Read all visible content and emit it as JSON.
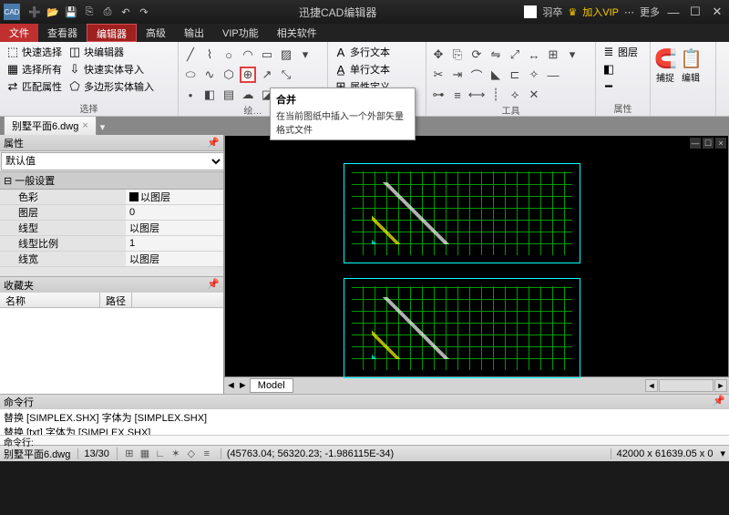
{
  "app": {
    "title": "迅捷CAD编辑器",
    "logo": "CAD"
  },
  "user": {
    "name": "羽卒",
    "vip_label": "加入VIP",
    "more_label": "更多"
  },
  "menu": {
    "file": "文件",
    "tabs": [
      "查看器",
      "编辑器",
      "高级",
      "输出",
      "VIP功能",
      "相关软件"
    ],
    "active": 1
  },
  "ribbon": {
    "sel": {
      "quick": "快速选择",
      "block": "块编辑器",
      "import": "快速实体导入",
      "all": "选择所有",
      "poly": "多边形实体输入",
      "match": "匹配属性",
      "label": "选择"
    },
    "draw": {
      "label": "绘…"
    },
    "text": {
      "multi": "多行文本",
      "single": "单行文本",
      "attr": "属性定义"
    },
    "tools": {
      "label": "工具"
    },
    "layer": {
      "layer": "图层",
      "label": "属性"
    },
    "cap": {
      "snap": "捕捉",
      "edit": "编辑"
    }
  },
  "tooltip": {
    "title": "合并",
    "desc": "在当前图纸中插入一个外部矢量格式文件"
  },
  "file": {
    "name": "别墅平面6.dwg"
  },
  "props": {
    "title": "属性",
    "default": "默认值",
    "general": "一般设置",
    "rows": [
      {
        "k": "色彩",
        "v": "以图层",
        "swatch": true
      },
      {
        "k": "图层",
        "v": "0"
      },
      {
        "k": "线型",
        "v": "以图层"
      },
      {
        "k": "线型比例",
        "v": "1"
      },
      {
        "k": "线宽",
        "v": "以图层"
      }
    ],
    "fav": "收藏夹",
    "col1": "名称",
    "col2": "路径"
  },
  "model": {
    "tab": "Model"
  },
  "cmd": {
    "title": "命令行",
    "line1": "替换 [SIMPLEX.SHX] 字体为 [SIMPLEX.SHX]",
    "line2": "替换 [txt] 字体为 [SIMPLEX.SHX]",
    "prompt": "命令行:"
  },
  "status": {
    "file": "别墅平面6.dwg",
    "pages": "13/30",
    "coords": "(45763.04; 56320.23; -1.986115E-34)",
    "size": "42000 x 61639.05 x 0"
  }
}
